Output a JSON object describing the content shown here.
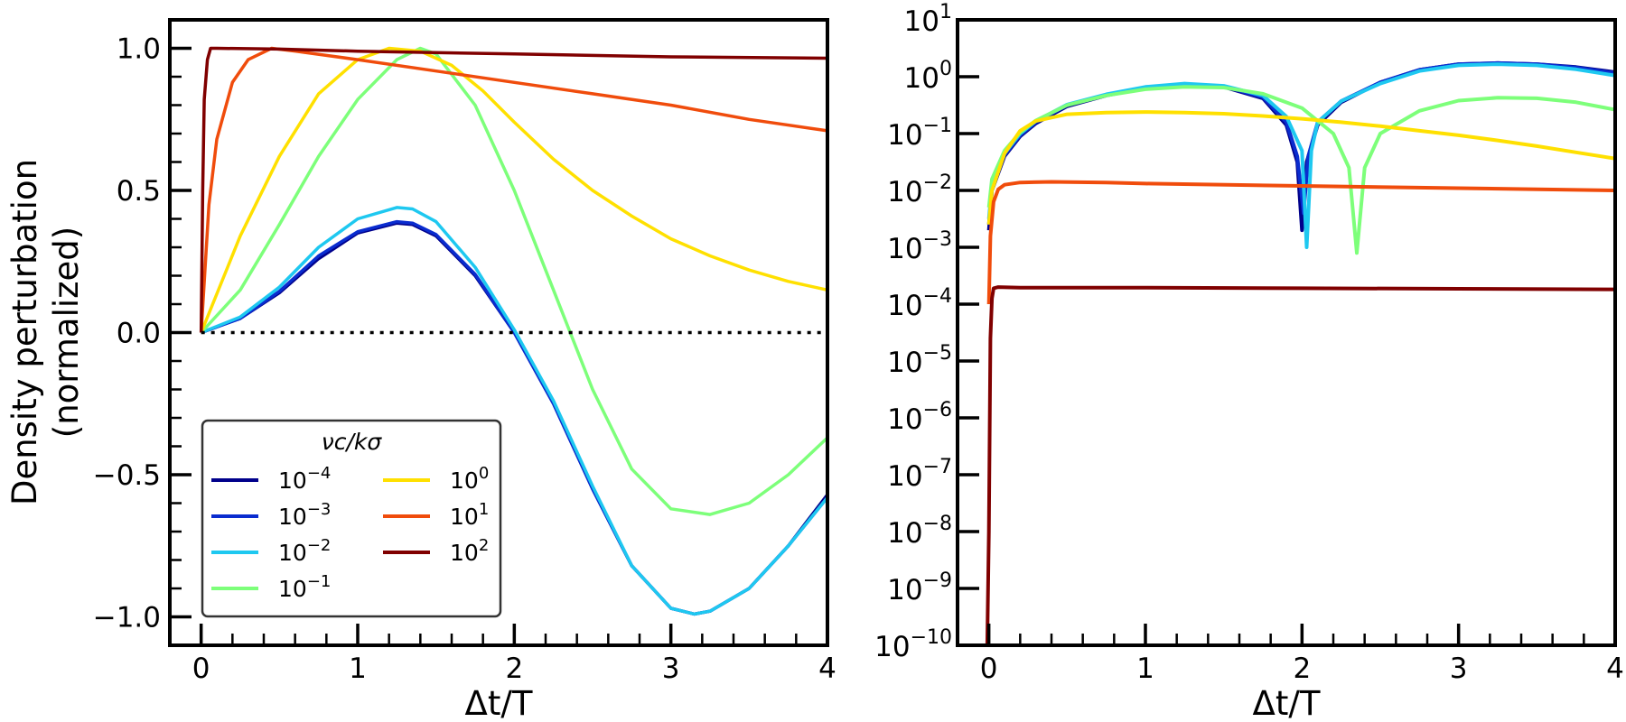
{
  "chart_data": [
    {
      "type": "line",
      "panel": "left",
      "title": "",
      "xlabel": "Δt/T",
      "ylabel": "Density perturbation",
      "ylabel2": "(normalized)",
      "xlim": [
        -0.2,
        4.0
      ],
      "ylim": [
        -1.1,
        1.1
      ],
      "xticks": [
        0,
        1,
        2,
        3,
        4
      ],
      "xtick_labels": [
        "0",
        "1",
        "2",
        "3",
        "4"
      ],
      "yticks": [
        -1.0,
        -0.5,
        0.0,
        0.5,
        1.0
      ],
      "ytick_labels": [
        "−1.0",
        "−0.5",
        "0.0",
        "0.5",
        "1.0"
      ],
      "reference_line": {
        "y": 0.0,
        "style": "dotted",
        "color": "#000000"
      },
      "legend": {
        "title": "νc/kσ",
        "location": "lower-left",
        "columns": 2,
        "entries": [
          {
            "base": "10",
            "exp": "−4",
            "color": "#00008b"
          },
          {
            "base": "10",
            "exp": "−3",
            "color": "#0a2ccf"
          },
          {
            "base": "10",
            "exp": "−2",
            "color": "#1ec8f0"
          },
          {
            "base": "10",
            "exp": "−1",
            "color": "#7dff7a"
          },
          {
            "base": "10",
            "exp": "0",
            "color": "#ffe000"
          },
          {
            "base": "10",
            "exp": "1",
            "color": "#f04c0c"
          },
          {
            "base": "10",
            "exp": "2",
            "color": "#800000"
          }
        ]
      },
      "series": [
        {
          "name": "1e-4",
          "color": "#00008b",
          "x": [
            0,
            0.25,
            0.5,
            0.75,
            1.0,
            1.25,
            1.35,
            1.5,
            1.75,
            2.0,
            2.25,
            2.5,
            2.75,
            3.0,
            3.15,
            3.25,
            3.5,
            3.75,
            4.0
          ],
          "values": [
            0,
            0.05,
            0.14,
            0.26,
            0.35,
            0.385,
            0.38,
            0.34,
            0.2,
            0.0,
            -0.25,
            -0.55,
            -0.82,
            -0.97,
            -0.99,
            -0.98,
            -0.9,
            -0.75,
            -0.57
          ]
        },
        {
          "name": "1e-3",
          "color": "#0a2ccf",
          "x": [
            0,
            0.25,
            0.5,
            0.75,
            1.0,
            1.25,
            1.35,
            1.5,
            1.75,
            2.0,
            2.25,
            2.5,
            2.75,
            3.0,
            3.15,
            3.25,
            3.5,
            3.75,
            4.0
          ],
          "values": [
            0,
            0.05,
            0.145,
            0.27,
            0.355,
            0.39,
            0.385,
            0.345,
            0.205,
            0.0,
            -0.25,
            -0.55,
            -0.82,
            -0.97,
            -0.99,
            -0.98,
            -0.9,
            -0.75,
            -0.58
          ]
        },
        {
          "name": "1e-2",
          "color": "#1ec8f0",
          "x": [
            0,
            0.25,
            0.5,
            0.75,
            1.0,
            1.25,
            1.35,
            1.5,
            1.75,
            2.0,
            2.25,
            2.5,
            2.75,
            3.0,
            3.15,
            3.25,
            3.5,
            3.75,
            4.0
          ],
          "values": [
            0,
            0.055,
            0.16,
            0.3,
            0.4,
            0.44,
            0.435,
            0.39,
            0.23,
            0.01,
            -0.24,
            -0.54,
            -0.82,
            -0.97,
            -0.99,
            -0.98,
            -0.9,
            -0.75,
            -0.58
          ]
        },
        {
          "name": "1e-1",
          "color": "#7dff7a",
          "x": [
            0,
            0.25,
            0.5,
            0.75,
            1.0,
            1.25,
            1.4,
            1.5,
            1.75,
            2.0,
            2.25,
            2.5,
            2.75,
            3.0,
            3.25,
            3.5,
            3.75,
            4.0
          ],
          "values": [
            0,
            0.15,
            0.38,
            0.62,
            0.82,
            0.96,
            1.0,
            0.98,
            0.8,
            0.5,
            0.15,
            -0.2,
            -0.48,
            -0.62,
            -0.64,
            -0.6,
            -0.5,
            -0.37
          ]
        },
        {
          "name": "1e0",
          "color": "#ffe000",
          "x": [
            0,
            0.25,
            0.5,
            0.75,
            1.0,
            1.2,
            1.4,
            1.6,
            1.8,
            2.0,
            2.25,
            2.5,
            2.75,
            3.0,
            3.25,
            3.5,
            3.75,
            4.0
          ],
          "values": [
            0,
            0.34,
            0.62,
            0.84,
            0.96,
            1.0,
            0.99,
            0.94,
            0.85,
            0.74,
            0.61,
            0.5,
            0.41,
            0.33,
            0.27,
            0.22,
            0.18,
            0.15
          ]
        },
        {
          "name": "1e1",
          "color": "#f04c0c",
          "x": [
            0,
            0.05,
            0.1,
            0.2,
            0.3,
            0.45,
            0.6,
            1.0,
            1.5,
            2.0,
            2.5,
            3.0,
            3.5,
            4.0
          ],
          "values": [
            0,
            0.45,
            0.68,
            0.88,
            0.96,
            1.0,
            0.99,
            0.96,
            0.92,
            0.88,
            0.84,
            0.8,
            0.75,
            0.71
          ]
        },
        {
          "name": "1e2",
          "color": "#800000",
          "x": [
            0,
            0.01,
            0.02,
            0.04,
            0.06,
            0.1,
            0.5,
            1.0,
            2.0,
            3.0,
            4.0
          ],
          "values": [
            0,
            0.5,
            0.82,
            0.96,
            1.0,
            1.0,
            0.997,
            0.99,
            0.98,
            0.97,
            0.965
          ]
        }
      ]
    },
    {
      "type": "line",
      "panel": "right",
      "title": "",
      "xlabel": "Δt/T",
      "ylabel": "",
      "xlim": [
        -0.2,
        4.0
      ],
      "yscale": "log",
      "ylim_exponents": [
        -10,
        1
      ],
      "xticks": [
        0,
        1,
        2,
        3,
        4
      ],
      "xtick_labels": [
        "0",
        "1",
        "2",
        "3",
        "4"
      ],
      "ytick_exponents": [
        "1",
        "0",
        "−1",
        "−2",
        "−3",
        "−4",
        "−5",
        "−6",
        "−7",
        "−8",
        "−9",
        "−10"
      ],
      "ytick_base": "10",
      "series": [
        {
          "name": "1e-4",
          "color": "#00008b",
          "x": [
            0,
            0.02,
            0.1,
            0.2,
            0.3,
            0.5,
            0.75,
            1.0,
            1.25,
            1.5,
            1.75,
            1.9,
            1.97,
            2.0,
            2.03,
            2.1,
            2.25,
            2.5,
            2.75,
            3.0,
            3.25,
            3.5,
            3.75,
            4.0
          ],
          "log10": [
            -2.7,
            -2.0,
            -1.4,
            -1.05,
            -0.82,
            -0.52,
            -0.33,
            -0.2,
            -0.14,
            -0.18,
            -0.38,
            -0.85,
            -1.5,
            -2.7,
            -1.5,
            -0.85,
            -0.45,
            -0.1,
            0.12,
            0.22,
            0.24,
            0.22,
            0.17,
            0.08
          ]
        },
        {
          "name": "1e-3",
          "color": "#0a2ccf",
          "x": [
            0,
            0.02,
            0.1,
            0.2,
            0.3,
            0.5,
            0.75,
            1.0,
            1.25,
            1.5,
            1.75,
            1.9,
            1.97,
            2.01,
            2.04,
            2.1,
            2.25,
            2.5,
            2.75,
            3.0,
            3.25,
            3.5,
            3.75,
            4.0
          ],
          "log10": [
            -2.6,
            -1.95,
            -1.38,
            -1.03,
            -0.8,
            -0.5,
            -0.32,
            -0.19,
            -0.13,
            -0.17,
            -0.36,
            -0.8,
            -1.4,
            -2.4,
            -1.4,
            -0.8,
            -0.43,
            -0.1,
            0.12,
            0.22,
            0.24,
            0.22,
            0.16,
            0.06
          ]
        },
        {
          "name": "1e-2",
          "color": "#1ec8f0",
          "x": [
            0,
            0.02,
            0.1,
            0.2,
            0.3,
            0.5,
            0.75,
            1.0,
            1.25,
            1.5,
            1.75,
            1.9,
            2.0,
            2.03,
            2.06,
            2.1,
            2.25,
            2.5,
            2.75,
            3.0,
            3.25,
            3.5,
            3.75,
            4.0
          ],
          "log10": [
            -2.5,
            -1.9,
            -1.35,
            -1.0,
            -0.78,
            -0.49,
            -0.31,
            -0.18,
            -0.12,
            -0.16,
            -0.33,
            -0.7,
            -1.3,
            -3.0,
            -1.3,
            -0.8,
            -0.43,
            -0.12,
            0.1,
            0.2,
            0.22,
            0.2,
            0.13,
            0.02
          ]
        },
        {
          "name": "1e-1",
          "color": "#7dff7a",
          "x": [
            0,
            0.02,
            0.1,
            0.2,
            0.3,
            0.5,
            0.75,
            1.0,
            1.25,
            1.5,
            1.75,
            2.0,
            2.2,
            2.3,
            2.35,
            2.4,
            2.5,
            2.75,
            3.0,
            3.25,
            3.5,
            3.75,
            4.0
          ],
          "log10": [
            -2.3,
            -1.8,
            -1.3,
            -0.98,
            -0.77,
            -0.5,
            -0.33,
            -0.22,
            -0.18,
            -0.19,
            -0.3,
            -0.55,
            -1.0,
            -1.6,
            -3.1,
            -1.6,
            -1.0,
            -0.6,
            -0.42,
            -0.37,
            -0.38,
            -0.45,
            -0.58
          ]
        },
        {
          "name": "1e0",
          "color": "#ffe000",
          "x": [
            0,
            0.02,
            0.1,
            0.2,
            0.3,
            0.5,
            0.75,
            1.0,
            1.25,
            1.5,
            1.75,
            2.0,
            2.25,
            2.5,
            2.75,
            3.0,
            3.25,
            3.5,
            3.75,
            4.0
          ],
          "log10": [
            -2.6,
            -2.0,
            -1.35,
            -0.95,
            -0.78,
            -0.66,
            -0.63,
            -0.62,
            -0.63,
            -0.65,
            -0.69,
            -0.74,
            -0.8,
            -0.87,
            -0.95,
            -1.03,
            -1.12,
            -1.22,
            -1.33,
            -1.44
          ]
        },
        {
          "name": "1e1",
          "color": "#f04c0c",
          "x": [
            0,
            0.01,
            0.03,
            0.06,
            0.1,
            0.2,
            0.4,
            0.75,
            1.0,
            2.0,
            3.0,
            4.0
          ],
          "log10": [
            -4.0,
            -2.8,
            -2.2,
            -1.98,
            -1.9,
            -1.86,
            -1.85,
            -1.86,
            -1.88,
            -1.92,
            -1.96,
            -2.0
          ]
        },
        {
          "name": "1e2",
          "color": "#800000",
          "x": [
            -0.01,
            0.0,
            0.01,
            0.02,
            0.03,
            0.06,
            0.2,
            1.0,
            2.0,
            3.0,
            4.0
          ],
          "log10": [
            -10.0,
            -8.0,
            -4.6,
            -3.9,
            -3.72,
            -3.7,
            -3.71,
            -3.71,
            -3.72,
            -3.73,
            -3.74
          ]
        }
      ]
    }
  ]
}
